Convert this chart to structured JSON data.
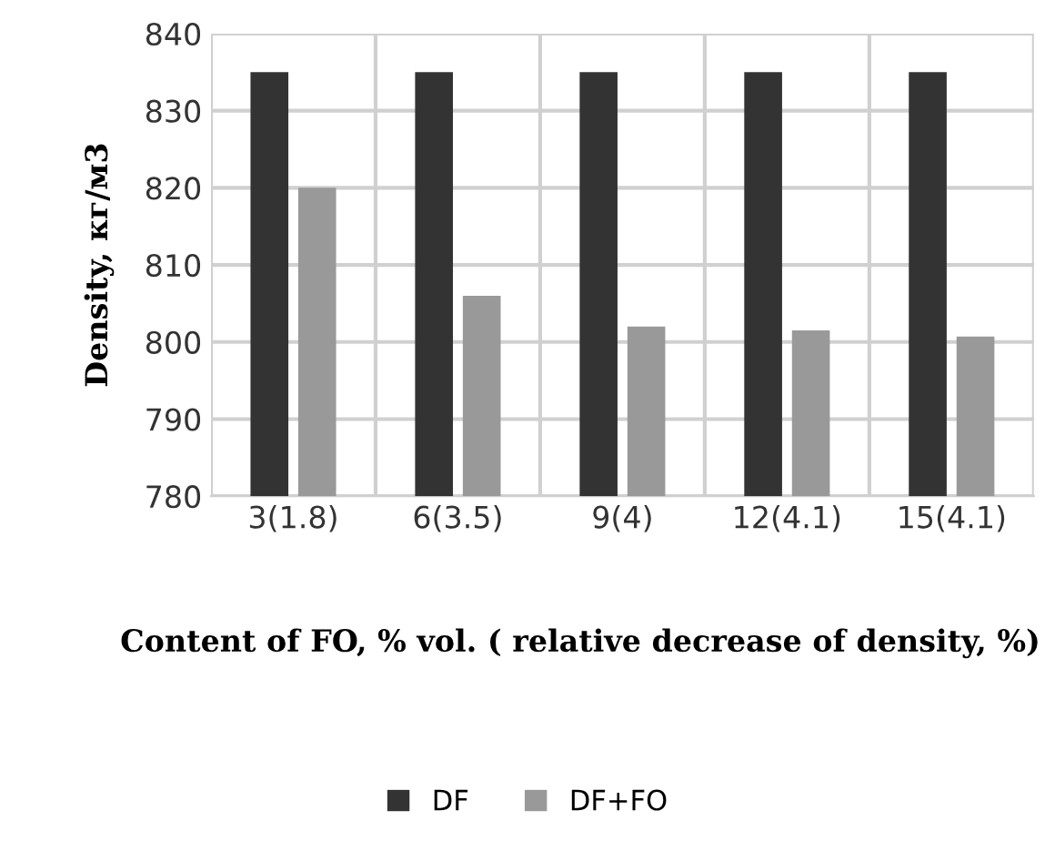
{
  "chart_data": {
    "type": "bar",
    "xlabel": "Content of FO, % vol. ( relative decrease of density, %)",
    "ylabel": "Density, кг/м3",
    "categories": [
      "3(1.8)",
      "6(3.5)",
      "9(4)",
      "12(4.1)",
      "15(4.1)"
    ],
    "series": [
      {
        "name": "DF",
        "color": "#333333",
        "values": [
          835,
          835,
          835,
          835,
          835
        ]
      },
      {
        "name": "DF+FO",
        "color": "#999999",
        "values": [
          820,
          806,
          802,
          801.5,
          800.7
        ]
      }
    ],
    "ylim": [
      780,
      840
    ],
    "yticks": [
      780,
      790,
      800,
      810,
      820,
      830,
      840
    ],
    "grid": true,
    "legend": "bottom"
  }
}
